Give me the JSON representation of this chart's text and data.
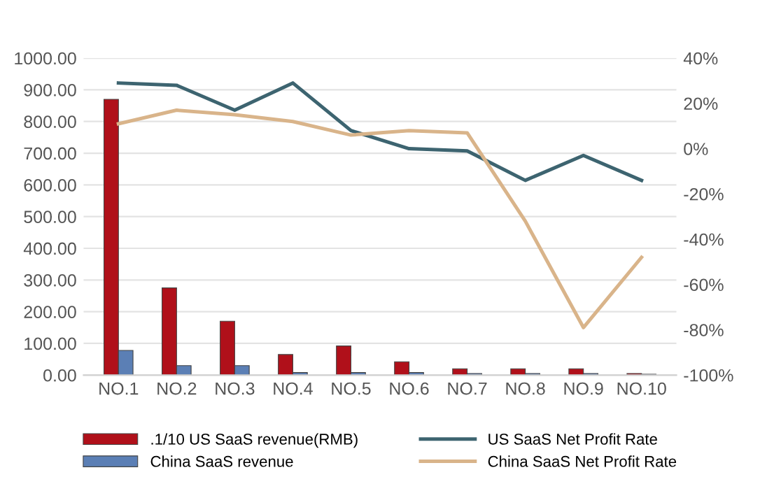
{
  "chart_data": {
    "type": "bar",
    "categories": [
      "NO.1",
      "NO.2",
      "NO.3",
      "NO.4",
      "NO.5",
      "NO.6",
      "NO.7",
      "NO.8",
      "NO.9",
      "NO.10"
    ],
    "series": [
      {
        "name": ".1/10 US SaaS revenue(RMB)",
        "color": "#b0101a",
        "values": [
          870,
          275,
          170,
          65,
          92,
          42,
          20,
          20,
          20,
          5
        ]
      },
      {
        "name": "China SaaS revenue",
        "color": "#5b7fb5",
        "values": [
          78,
          30,
          30,
          8,
          8,
          8,
          5,
          5,
          5,
          3
        ]
      },
      {
        "name": "US SaaS Net Profit Rate",
        "type": "line",
        "axis": "y2",
        "color": "#3d6470",
        "values": [
          29,
          28,
          17,
          29,
          8,
          0,
          -1,
          -14,
          -3,
          -14
        ]
      },
      {
        "name": "China SaaS Net Profit Rate",
        "type": "line",
        "axis": "y2",
        "color": "#d9b48a",
        "values": [
          11,
          17,
          15,
          12,
          6,
          8,
          7,
          -32,
          -79,
          -48
        ]
      }
    ],
    "ylim": [
      0,
      1000
    ],
    "yticks": [
      {
        "value": 0,
        "label": "0.00"
      },
      {
        "value": 100,
        "label": "100.00"
      },
      {
        "value": 200,
        "label": "200.00"
      },
      {
        "value": 300,
        "label": "300.00"
      },
      {
        "value": 400,
        "label": "400.00"
      },
      {
        "value": 500,
        "label": "500.00"
      },
      {
        "value": 600,
        "label": "600.00"
      },
      {
        "value": 700,
        "label": "700.00"
      },
      {
        "value": 800,
        "label": "800.00"
      },
      {
        "value": 900,
        "label": "900.00"
      },
      {
        "value": 1000,
        "label": "1000.00"
      }
    ],
    "y2lim": [
      -100,
      40
    ],
    "y2ticks": [
      {
        "value": -100,
        "label": "-100%"
      },
      {
        "value": -80,
        "label": "-80%"
      },
      {
        "value": -60,
        "label": "-60%"
      },
      {
        "value": -40,
        "label": "-40%"
      },
      {
        "value": -20,
        "label": "-20%"
      },
      {
        "value": 0,
        "label": "0%"
      },
      {
        "value": 20,
        "label": "20%"
      },
      {
        "value": 40,
        "label": "40%"
      }
    ],
    "grid": "y",
    "legend": "bottom",
    "marker": "none",
    "line_style": "solid"
  }
}
